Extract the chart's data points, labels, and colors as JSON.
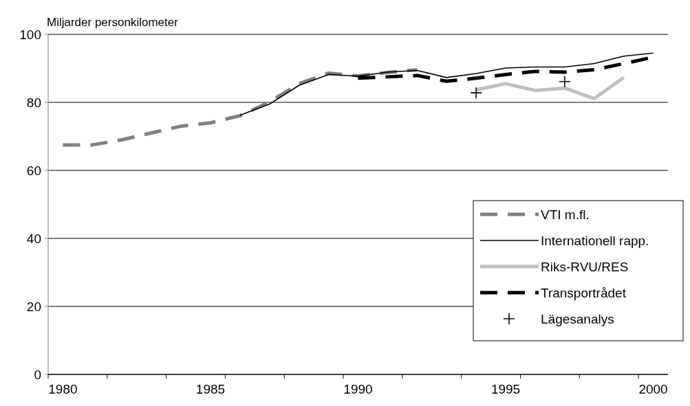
{
  "chart_data": {
    "type": "line",
    "ylabel": "Miljarder personkilometer",
    "categories": [
      "1980",
      null,
      null,
      null,
      null,
      "1985",
      null,
      null,
      null,
      null,
      "1990",
      null,
      null,
      null,
      null,
      "1995",
      null,
      null,
      null,
      null,
      "2000"
    ],
    "ylim": [
      0,
      100
    ],
    "yticks": [
      0,
      20,
      40,
      60,
      80,
      100
    ],
    "grid": "y",
    "legend": "right",
    "series": [
      {
        "name": "VTI m.fl.",
        "color": "#808080",
        "line_style": "dashed",
        "values": [
          67.5,
          67.5,
          69.0,
          71.0,
          73.0,
          74.0,
          76.1,
          80.1,
          85.5,
          88.6,
          87.8,
          88.8,
          89.6,
          null,
          null,
          null,
          null,
          null,
          null,
          null,
          null
        ]
      },
      {
        "name": "Internationell rapp.",
        "color": "#000000",
        "line_style": "solid",
        "values": [
          null,
          null,
          null,
          null,
          null,
          null,
          76.2,
          79.5,
          85.0,
          88.2,
          87.7,
          88.9,
          89.4,
          87.3,
          88.5,
          90.1,
          90.4,
          90.4,
          91.4,
          93.6,
          94.5
        ]
      },
      {
        "name": "Riks-RVU/RES",
        "color": "#c0c0c0",
        "line_style": "solid",
        "values": [
          null,
          null,
          null,
          null,
          null,
          null,
          null,
          null,
          null,
          null,
          null,
          null,
          null,
          null,
          83.7,
          85.5,
          83.5,
          84.2,
          81.1,
          87.3,
          null
        ]
      },
      {
        "name": "Transportrådet",
        "color": "#000000",
        "line_style": "dashed",
        "values": [
          null,
          null,
          null,
          null,
          null,
          null,
          null,
          null,
          null,
          null,
          87.1,
          87.5,
          87.9,
          86.2,
          87.1,
          88.2,
          89.1,
          88.9,
          89.6,
          91.4,
          93.3
        ]
      },
      {
        "name": "Lägesanalys",
        "type": "scatter",
        "marker": "cross",
        "color": "#000000",
        "values": [
          null,
          null,
          null,
          null,
          null,
          null,
          null,
          null,
          null,
          null,
          null,
          null,
          null,
          null,
          82.8,
          null,
          null,
          86.1,
          null,
          null,
          null
        ]
      }
    ]
  }
}
